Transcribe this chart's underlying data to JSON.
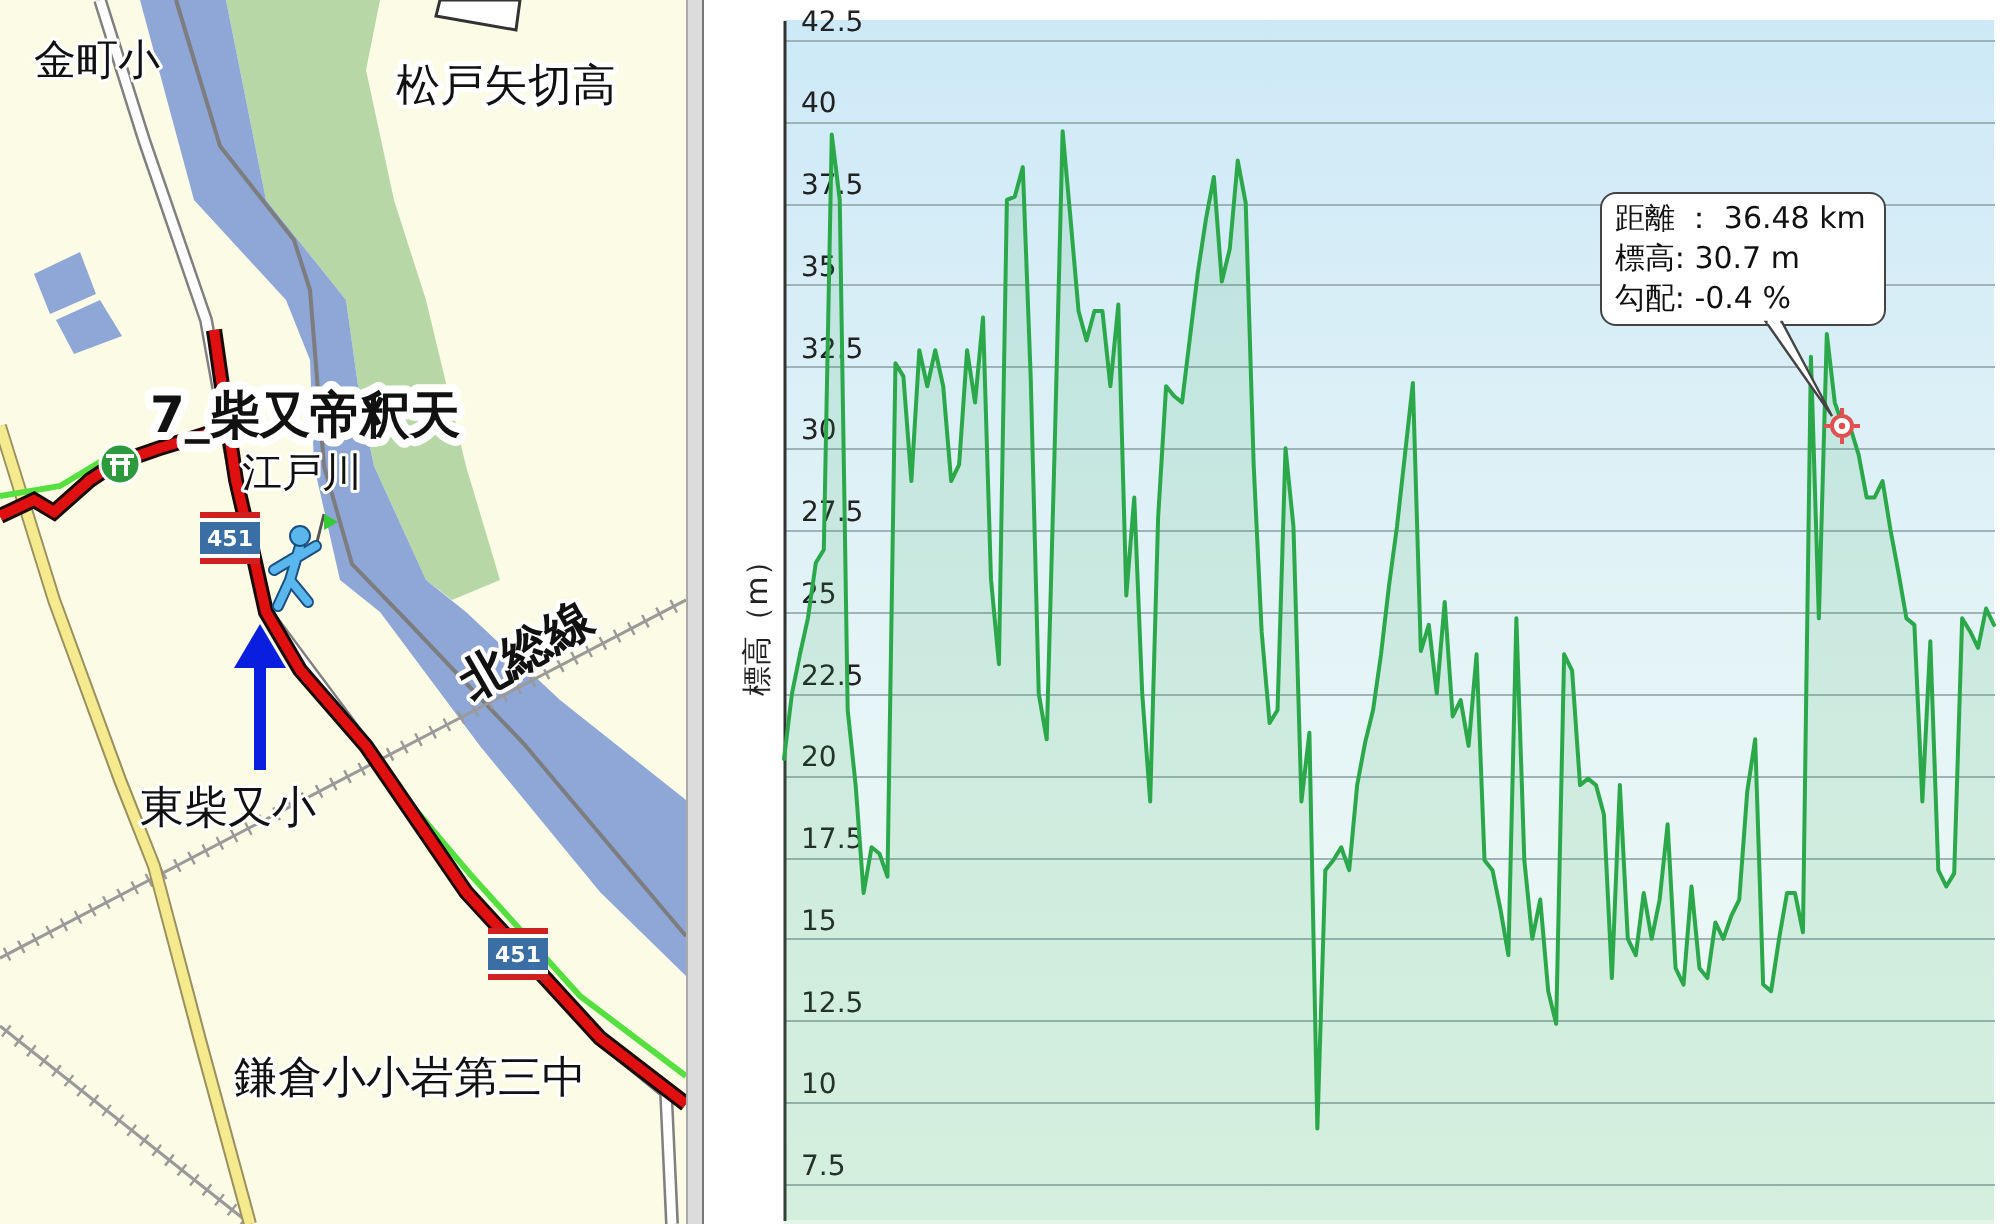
{
  "chart_data": [
    {
      "type": "other",
      "annotations": [
        "金町小",
        "松戸矢切高",
        "7_柴又帝釈天",
        "江戸川",
        "451",
        "北総線",
        "東柴又小",
        "451",
        "鎌倉小小岩第三中"
      ]
    },
    {
      "type": "area",
      "ylabel": "標高（m）",
      "categories": [
        null,
        null,
        null,
        null,
        null,
        null,
        null,
        null,
        null,
        null,
        null,
        null,
        null,
        null,
        null,
        null,
        null,
        null,
        null,
        null,
        null,
        null,
        null,
        null,
        null,
        null,
        null,
        null,
        null,
        null,
        null,
        null,
        null,
        null,
        null,
        null,
        null,
        null,
        null,
        null,
        null,
        null,
        null,
        null,
        null,
        null,
        null,
        null,
        null,
        null,
        null,
        null,
        null,
        null,
        null,
        null,
        null,
        null,
        null,
        null,
        null,
        null,
        null,
        null,
        null,
        null,
        null,
        null,
        null,
        null,
        null,
        null,
        null,
        null,
        null,
        null,
        null,
        null,
        null,
        null,
        null,
        null,
        null,
        null,
        null,
        null,
        null,
        null,
        null,
        null,
        null,
        null,
        null,
        null,
        null,
        null,
        null,
        null,
        null,
        null,
        null,
        null,
        null,
        null,
        null,
        null,
        null,
        null,
        null,
        null,
        null,
        null,
        null,
        null,
        null,
        null,
        null,
        null,
        null,
        null,
        null,
        null,
        null,
        null,
        null,
        null,
        null,
        null,
        null,
        null,
        null,
        null,
        null,
        null,
        null,
        null,
        null,
        null,
        null,
        null,
        null,
        null,
        null,
        null,
        null,
        null,
        null,
        null,
        null,
        null,
        null,
        null,
        null
      ],
      "series": [
        {
          "color": "#2ba84a",
          "values": [
            20.5,
            22.5,
            23.7,
            24.8,
            26.5,
            26.9,
            39.6,
            37.6,
            22.0,
            19.7,
            16.4,
            17.8,
            17.6,
            16.9,
            32.6,
            32.2,
            29.0,
            33.0,
            31.9,
            33.0,
            31.9,
            29.0,
            29.5,
            33.0,
            31.4,
            34.0,
            26.0,
            23.4,
            37.6,
            37.7,
            38.6,
            32.1,
            22.5,
            21.1,
            30.0,
            39.7,
            37.0,
            34.2,
            33.3,
            34.2,
            34.2,
            31.9,
            34.4,
            25.5,
            28.5,
            22.5,
            19.2,
            27.9,
            31.9,
            31.6,
            31.4,
            33.4,
            35.4,
            37.0,
            38.3,
            35.1,
            36.1,
            38.8,
            37.5,
            29.5,
            24.4,
            21.6,
            22.0,
            30.0,
            27.6,
            19.2,
            21.3,
            9.2,
            17.1,
            17.4,
            17.8,
            17.1,
            19.7,
            21.0,
            22.0,
            23.7,
            25.8,
            27.6,
            29.8,
            32.0,
            23.8,
            24.6,
            22.5,
            25.3,
            21.8,
            22.3,
            20.9,
            23.7,
            17.4,
            17.1,
            15.9,
            14.5,
            24.8,
            17.4,
            15.0,
            16.2,
            13.4,
            12.4,
            23.7,
            23.2,
            19.7,
            19.9,
            19.7,
            18.8,
            13.8,
            19.7,
            15.0,
            14.5,
            16.4,
            15.0,
            16.2,
            18.5,
            14.1,
            13.6,
            16.6,
            14.1,
            13.8,
            15.5,
            15.0,
            15.7,
            16.2,
            19.5,
            21.1,
            13.6,
            13.4,
            15.0,
            16.4,
            16.4,
            15.2,
            32.8,
            24.8,
            33.5,
            31.4,
            30.7,
            30.6,
            29.8,
            28.5,
            28.5,
            29.0,
            27.5,
            26.2,
            24.8,
            24.6,
            19.2,
            24.1,
            17.1,
            16.6,
            17.0,
            24.8,
            24.4,
            23.9,
            25.1,
            24.6
          ]
        }
      ],
      "ylim": [
        6.4,
        43.1
      ],
      "yticks": [
        7.5,
        10,
        12.5,
        15,
        17.5,
        20,
        22.5,
        25,
        27.5,
        30,
        32.5,
        35,
        37.5,
        40,
        42.5
      ],
      "grid": "y",
      "tick_labels": "y",
      "annotations": [
        "距離 ： 36.48 km\n標高: 30.7 m\n勾配: -0.4 %"
      ]
    }
  ]
}
